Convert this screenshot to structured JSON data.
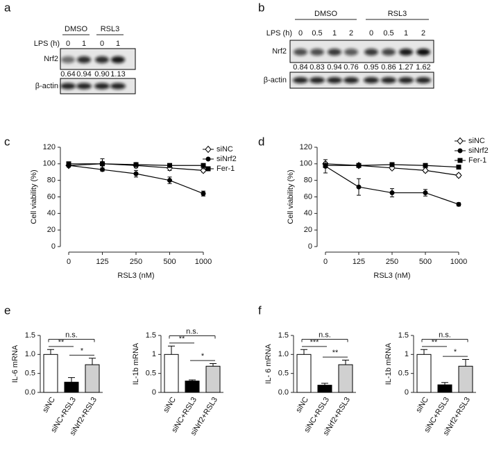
{
  "panels": [
    "a",
    "b",
    "c",
    "d",
    "e",
    "f"
  ],
  "blots": [
    {
      "groups": [
        "DMSO",
        "RSL3"
      ],
      "row_label": "LPS (h)",
      "lanes": [
        "0",
        "1",
        "0",
        "1"
      ],
      "target": "Nrf2",
      "quant": [
        "0.64",
        "0.94",
        "0.90",
        "1.13"
      ],
      "control": "β-actin"
    },
    {
      "groups": [
        "DMSO",
        "RSL3"
      ],
      "row_label": "LPS (h)",
      "lanes": [
        "0",
        "0.5",
        "1",
        "2",
        "0",
        "0.5",
        "1",
        "2"
      ],
      "target": "Nrf2",
      "quant": [
        "0.84",
        "0.83",
        "0.94",
        "0.76",
        "0.95",
        "0.86",
        "1.27",
        "1.62"
      ],
      "control": "β-actin"
    }
  ],
  "chart_data": [
    {
      "type": "line",
      "xlabel": "RSL3 (nM)",
      "ylabel": "Cell viability (%)",
      "categories": [
        "0",
        "125",
        "250",
        "500",
        "1000"
      ],
      "ylim": [
        0,
        120
      ],
      "yticks": [
        0,
        20,
        40,
        60,
        80,
        100,
        120
      ],
      "series": [
        {
          "name": "siNC",
          "color": "#000000",
          "marker": "diamond-open",
          "values": [
            98,
            100,
            98,
            95,
            92
          ],
          "errors": [
            2,
            6,
            3,
            3,
            2
          ]
        },
        {
          "name": "siNrf2",
          "color": "#000000",
          "marker": "circle",
          "values": [
            98,
            93,
            88,
            80,
            64
          ],
          "errors": [
            2,
            2,
            4,
            4,
            3
          ]
        },
        {
          "name": "Fer-1",
          "color": "#000000",
          "marker": "square",
          "values": [
            100,
            100,
            99,
            98,
            98
          ],
          "errors": [
            1,
            1,
            1,
            1,
            1
          ]
        }
      ]
    },
    {
      "type": "line",
      "xlabel": "RSL3 (nM)",
      "ylabel": "Cell viability (%)",
      "categories": [
        "0",
        "125",
        "250",
        "500",
        "1000"
      ],
      "ylim": [
        0,
        120
      ],
      "yticks": [
        0,
        20,
        40,
        60,
        80,
        100,
        120
      ],
      "series": [
        {
          "name": "siNC",
          "color": "#000000",
          "marker": "diamond-open",
          "values": [
            100,
            98,
            95,
            92,
            86
          ],
          "errors": [
            2,
            1,
            2,
            2,
            2
          ]
        },
        {
          "name": "siNrf2",
          "color": "#000000",
          "marker": "circle",
          "values": [
            97,
            72,
            65,
            65,
            51
          ],
          "errors": [
            8,
            10,
            5,
            4,
            2
          ]
        },
        {
          "name": "Fer-1",
          "color": "#000000",
          "marker": "square",
          "values": [
            98,
            98,
            99,
            98,
            96
          ],
          "errors": [
            1,
            1,
            1,
            1,
            1
          ]
        }
      ]
    },
    {
      "type": "bar",
      "ylabel": "IL-6 mRNA",
      "categories": [
        "siNC",
        "siNC+RSL3",
        "siNrf2+RSL3"
      ],
      "colors": [
        "#ffffff",
        "#000000",
        "#d0d0d0"
      ],
      "values": [
        1.0,
        0.27,
        0.73
      ],
      "errors": [
        0.13,
        0.12,
        0.17
      ],
      "annotations": [
        "**",
        "*",
        "n.s."
      ],
      "ylim": [
        0,
        1.5
      ],
      "yticks": [
        {
          "value": 0,
          "label": "0.0"
        },
        0.5,
        {
          "value": 1,
          "label": "1.0"
        },
        1.5
      ]
    },
    {
      "type": "bar",
      "ylabel": "IL-1b mRNA",
      "categories": [
        "siNC",
        "siNC+RSL3",
        "siNrf2+RSL3"
      ],
      "colors": [
        "#ffffff",
        "#000000",
        "#d0d0d0"
      ],
      "values": [
        1.0,
        0.3,
        0.69
      ],
      "errors": [
        0.22,
        0.03,
        0.07
      ],
      "annotations": [
        "**",
        "*",
        "n.s."
      ],
      "ylim": [
        0,
        1.5
      ],
      "yticks": [
        0,
        0.5,
        1,
        1.5
      ]
    },
    {
      "type": "bar",
      "ylabel": "IL- 6 mRNA",
      "categories": [
        "siNC",
        "siNC+RSL3",
        "siNrf2+RSL3"
      ],
      "colors": [
        "#ffffff",
        "#000000",
        "#d0d0d0"
      ],
      "values": [
        1.0,
        0.19,
        0.73
      ],
      "errors": [
        0.13,
        0.05,
        0.12
      ],
      "annotations": [
        "***",
        "**",
        "n.s."
      ],
      "ylim": [
        0,
        1.5
      ],
      "yticks": [
        {
          "value": 0,
          "label": "0.0"
        },
        0.5,
        {
          "value": 1,
          "label": "1.0"
        },
        1.5
      ]
    },
    {
      "type": "bar",
      "ylabel": "IL-1b mRNA",
      "categories": [
        "siNC",
        "siNC+RSL3",
        "siNrf2+RSL3"
      ],
      "colors": [
        "#ffffff",
        "#000000",
        "#d0d0d0"
      ],
      "values": [
        1.0,
        0.2,
        0.69
      ],
      "errors": [
        0.13,
        0.06,
        0.18
      ],
      "annotations": [
        "**",
        "*",
        "n.s."
      ],
      "ylim": [
        0,
        1.5
      ],
      "yticks": [
        0,
        0.5,
        1,
        1.5
      ]
    }
  ]
}
